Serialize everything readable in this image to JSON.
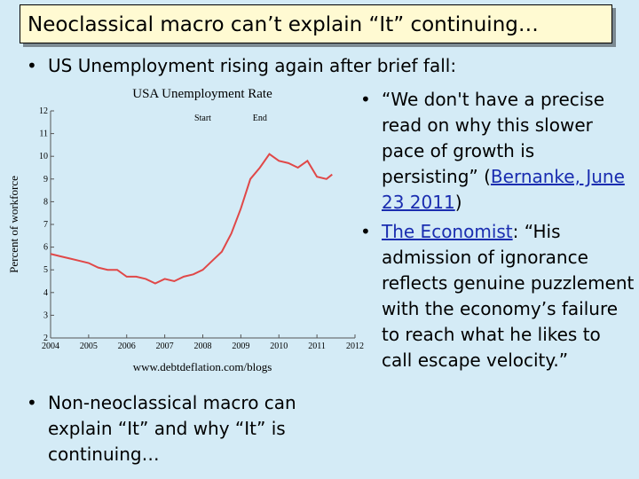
{
  "title": "Neoclassical macro can’t explain “It” continuing…",
  "bullets": [
    {
      "parts": [
        {
          "text": "US Unemployment rising again after brief fall:",
          "link": false
        }
      ]
    },
    {
      "parts": [
        {
          "text": "“We don't have a precise read on why this slower pace of growth is persisting” (",
          "link": false
        },
        {
          "text": "Bernanke, June 23 2011",
          "link": true
        },
        {
          "text": ")",
          "link": false
        }
      ]
    },
    {
      "parts": [
        {
          "text": "The Economist",
          "link": true
        },
        {
          "text": ": “His admission of ignorance reflects genuine puzzlement with the economy’s failure to reach what he likes to call escape velocity.”",
          "link": false
        }
      ]
    },
    {
      "parts": [
        {
          "text": "Non-neoclassical macro can explain “It” and why “It” is continuing…",
          "link": false
        }
      ]
    }
  ],
  "chart_data": {
    "type": "line",
    "title": "USA Unemployment Rate",
    "y_label": "Percent of workforce",
    "source": "www.debtdeflation.com/blogs",
    "annotations": [
      {
        "text": "Start",
        "x": 2008.0
      },
      {
        "text": "End",
        "x": 2009.5
      }
    ],
    "color": "#e04848",
    "x": [
      2004.0,
      2004.25,
      2004.5,
      2004.75,
      2005.0,
      2005.25,
      2005.5,
      2005.75,
      2006.0,
      2006.25,
      2006.5,
      2006.75,
      2007.0,
      2007.25,
      2007.5,
      2007.75,
      2008.0,
      2008.25,
      2008.5,
      2008.75,
      2009.0,
      2009.25,
      2009.5,
      2009.75,
      2010.0,
      2010.25,
      2010.5,
      2010.75,
      2011.0,
      2011.25,
      2011.4
    ],
    "values": [
      5.7,
      5.6,
      5.5,
      5.4,
      5.3,
      5.1,
      5.0,
      5.0,
      4.7,
      4.7,
      4.6,
      4.4,
      4.6,
      4.5,
      4.7,
      4.8,
      5.0,
      5.4,
      5.8,
      6.6,
      7.7,
      9.0,
      9.5,
      10.1,
      9.8,
      9.7,
      9.5,
      9.8,
      9.1,
      9.0,
      9.2
    ],
    "xlim": [
      2004,
      2012
    ],
    "xticks": [
      2004,
      2005,
      2006,
      2007,
      2008,
      2009,
      2010,
      2011,
      2012
    ],
    "ylim": [
      2,
      12
    ],
    "yticks": [
      2,
      3,
      4,
      5,
      6,
      7,
      8,
      9,
      10,
      11,
      12
    ]
  }
}
